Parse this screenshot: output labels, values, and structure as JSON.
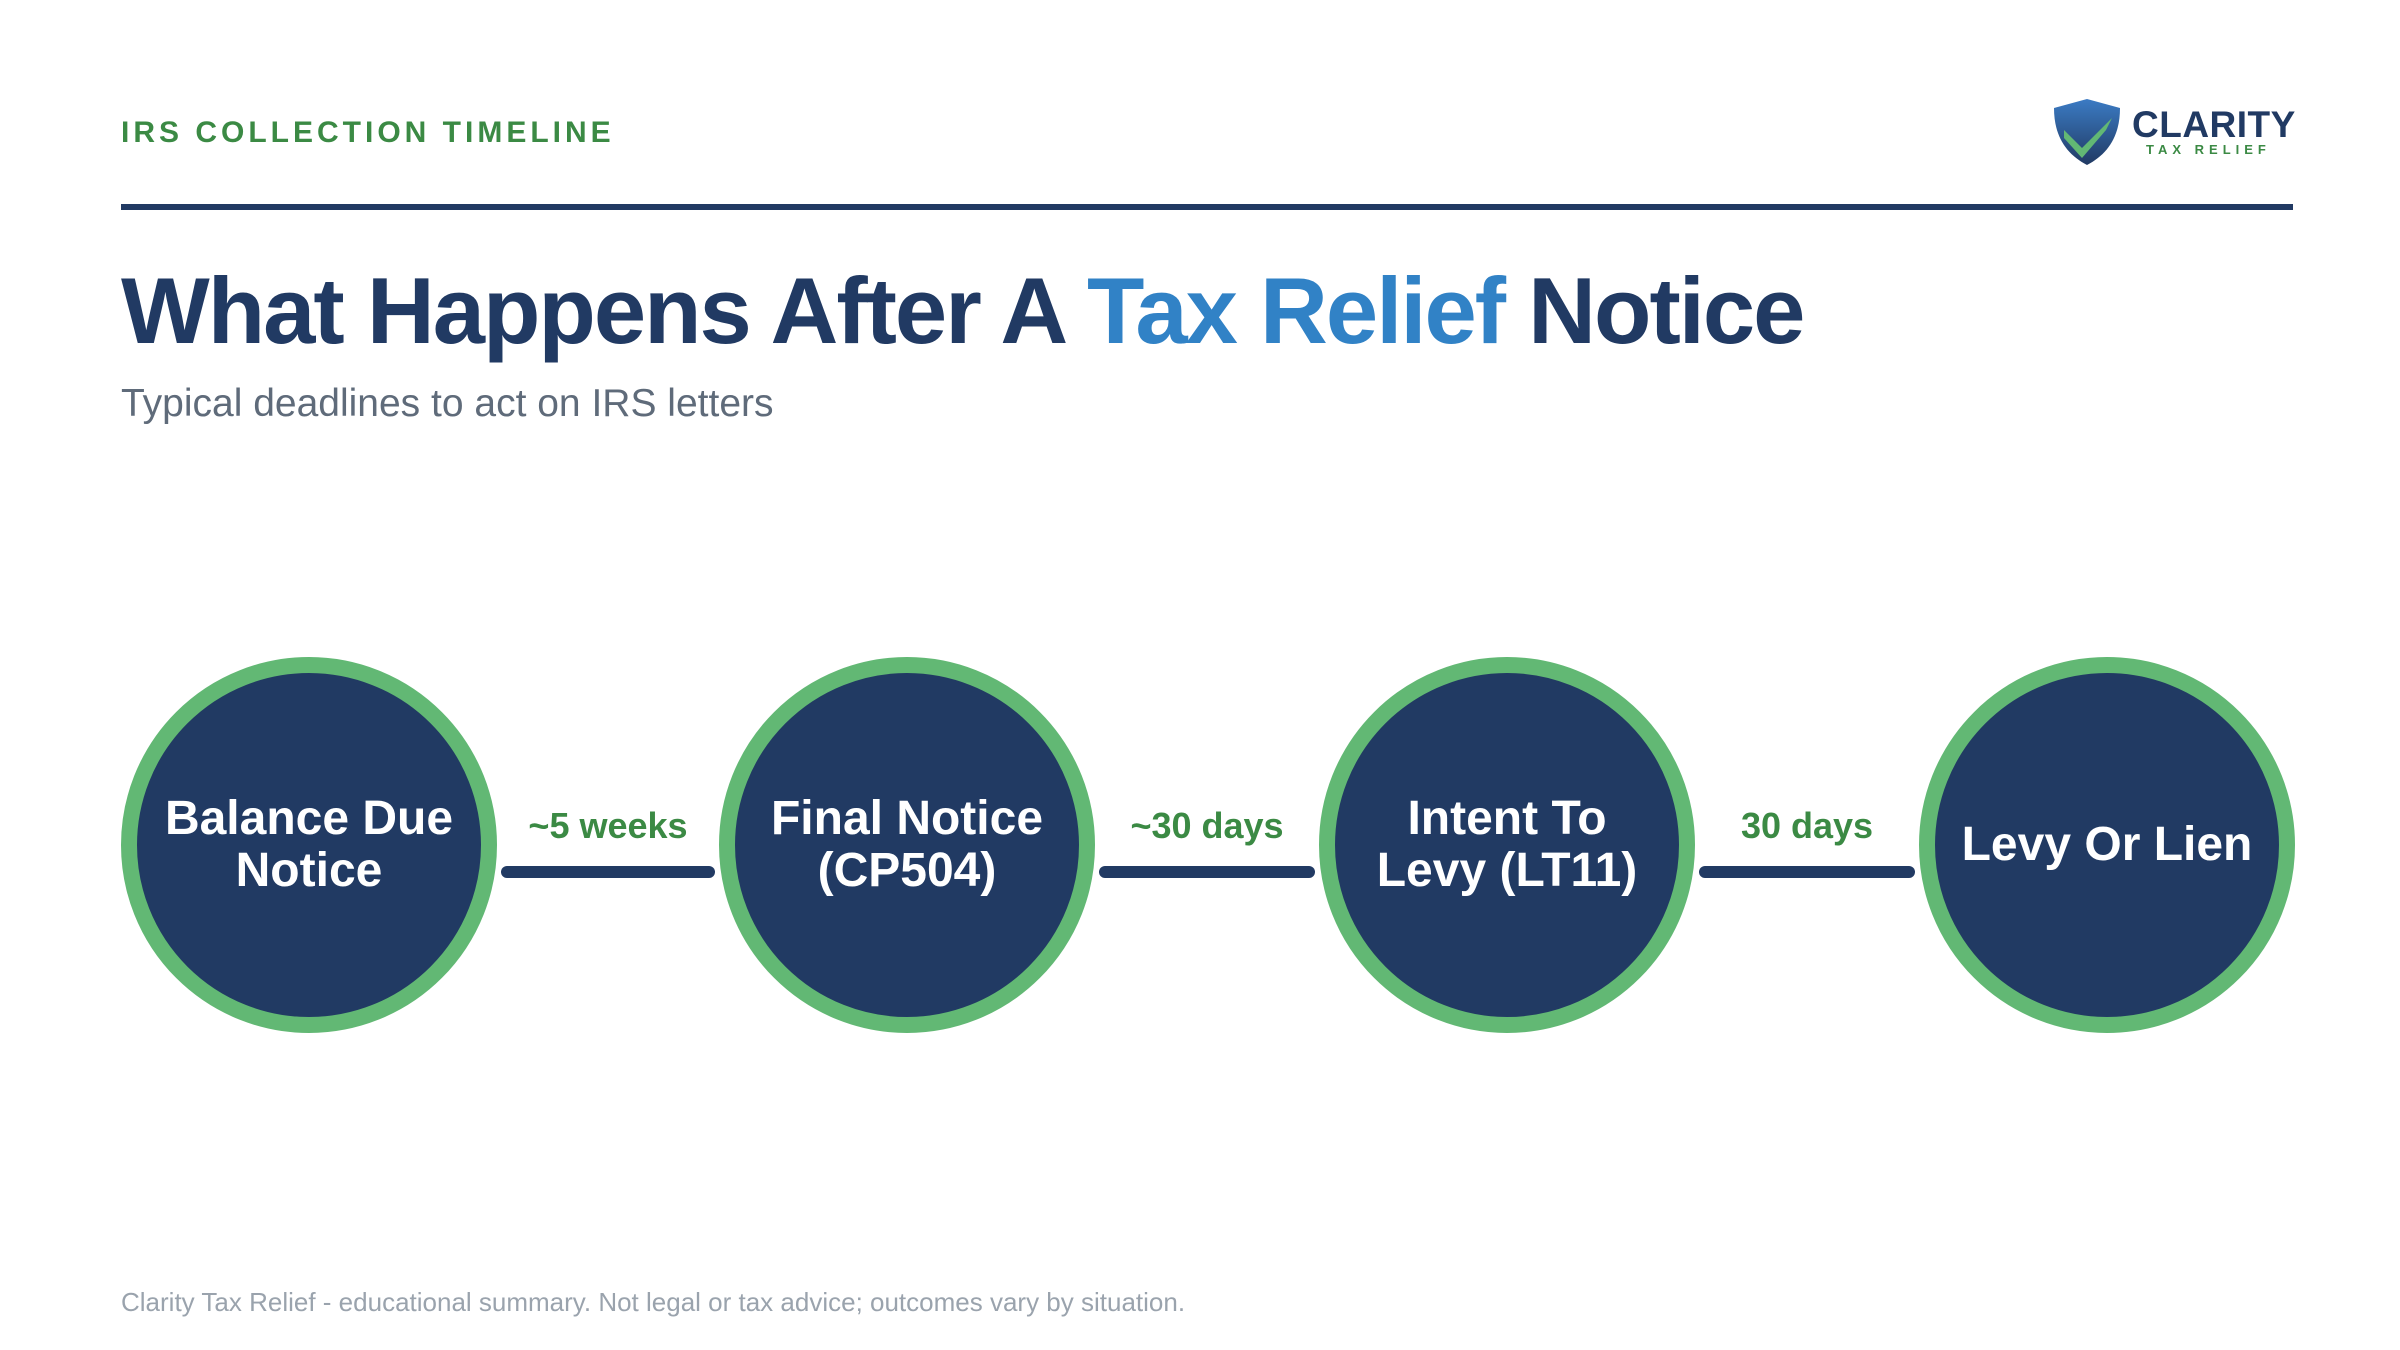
{
  "header": {
    "eyebrow": "IRS COLLECTION TIMELINE",
    "logo": {
      "name": "CLARITY",
      "tagline": "TAX RELIEF",
      "icon": "shield-check-icon"
    }
  },
  "title": {
    "part1": "What Happens After A ",
    "highlight": "Tax Relief",
    "part2": " Notice"
  },
  "subtitle": "Typical deadlines to act on IRS letters",
  "timeline": {
    "steps": [
      {
        "label": "Balance Due Notice"
      },
      {
        "label": "Final Notice (CP504)"
      },
      {
        "label": "Intent To Levy (LT11)"
      },
      {
        "label": "Levy Or Lien"
      }
    ],
    "intervals": [
      {
        "label": "~5 weeks"
      },
      {
        "label": "~30 days"
      },
      {
        "label": "30 days"
      }
    ]
  },
  "footer": "Clarity Tax Relief - educational summary. Not legal or tax advice; outcomes vary by situation.",
  "colors": {
    "navy": "#213a63",
    "green": "#3b8a44",
    "ring_green": "#62b874",
    "accent_blue": "#3182c6",
    "muted_text": "#5f6b7a",
    "footer_text": "#9aa3ad"
  }
}
